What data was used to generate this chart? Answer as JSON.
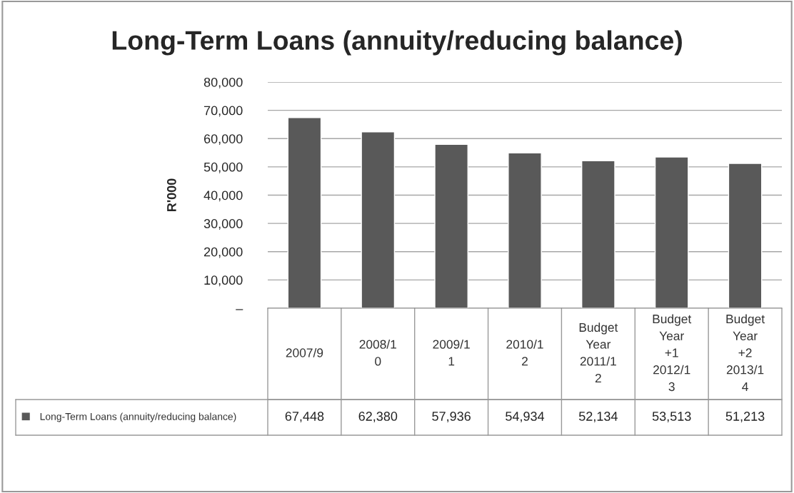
{
  "chart_data": {
    "type": "bar",
    "title": "Long-Term Loans (annuity/reducing balance)",
    "ylabel": "R'000",
    "categories": [
      "2007/9",
      "2008/10",
      "2009/11",
      "2010/12",
      "Budget Year 2011/12",
      "Budget Year +1 2012/13",
      "Budget Year +2 2013/14"
    ],
    "series": [
      {
        "name": "Long-Term Loans (annuity/reducing balance)",
        "color": "#595959",
        "values": [
          67448,
          62380,
          57936,
          54934,
          52134,
          53513,
          51213
        ],
        "value_labels": [
          "67,448",
          "62,380",
          "57,936",
          "54,934",
          "52,134",
          "53,513",
          "51,213"
        ]
      }
    ],
    "ylim": [
      0,
      80000
    ],
    "yticks": [
      {
        "value": 0,
        "label": "–"
      },
      {
        "value": 10000,
        "label": "10,000"
      },
      {
        "value": 20000,
        "label": "20,000"
      },
      {
        "value": 30000,
        "label": "30,000"
      },
      {
        "value": 40000,
        "label": "40,000"
      },
      {
        "value": 50000,
        "label": "50,000"
      },
      {
        "value": 60000,
        "label": "60,000"
      },
      {
        "value": 70000,
        "label": "70,000"
      },
      {
        "value": 80000,
        "label": "80,000"
      }
    ],
    "grid": "y",
    "legend": "bottom"
  }
}
